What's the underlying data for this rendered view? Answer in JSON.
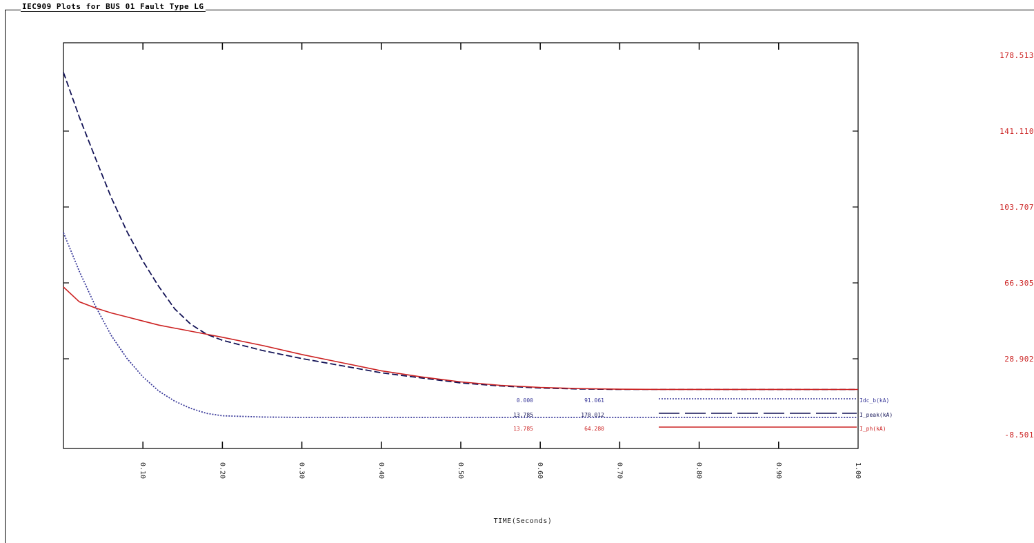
{
  "title": "IEC909 Plots for BUS 01 Fault Type LG",
  "chart_data": {
    "type": "line",
    "xlabel": "TIME(Seconds)",
    "xlim": [
      0.0,
      1.0
    ],
    "ylim": [
      -8.501,
      178.513
    ],
    "xticks": [
      "0.10",
      "0.20",
      "0.30",
      "0.40",
      "0.50",
      "0.60",
      "0.70",
      "0.80",
      "0.90",
      "1.00"
    ],
    "yticks": [
      "178.513",
      "141.110",
      "103.707",
      "66.305",
      "28.902",
      "-8.501"
    ],
    "grid": false,
    "legend_position": "lower-right",
    "series": [
      {
        "name": "Idc_b(kA)",
        "style": "dotted",
        "color": "#3a3a9a",
        "points": [
          [
            0.0,
            91.061
          ],
          [
            0.02,
            72.0
          ],
          [
            0.04,
            55.0
          ],
          [
            0.06,
            40.5
          ],
          [
            0.08,
            29.0
          ],
          [
            0.1,
            20.0
          ],
          [
            0.12,
            13.0
          ],
          [
            0.14,
            8.0
          ],
          [
            0.16,
            4.5
          ],
          [
            0.18,
            2.0
          ],
          [
            0.2,
            0.8
          ],
          [
            0.25,
            0.2
          ],
          [
            0.3,
            0.0
          ],
          [
            1.0,
            0.0
          ]
        ]
      },
      {
        "name": "I_peak(kA)",
        "style": "dashed",
        "color": "#111155",
        "points": [
          [
            0.0,
            170.012
          ],
          [
            0.02,
            148.0
          ],
          [
            0.04,
            128.0
          ],
          [
            0.06,
            108.5
          ],
          [
            0.08,
            91.5
          ],
          [
            0.1,
            77.0
          ],
          [
            0.12,
            64.5
          ],
          [
            0.14,
            53.5
          ],
          [
            0.16,
            46.0
          ],
          [
            0.18,
            41.0
          ],
          [
            0.2,
            38.0
          ],
          [
            0.25,
            33.0
          ],
          [
            0.3,
            29.0
          ],
          [
            0.35,
            25.5
          ],
          [
            0.4,
            22.0
          ],
          [
            0.45,
            19.5
          ],
          [
            0.5,
            17.0
          ],
          [
            0.55,
            15.5
          ],
          [
            0.6,
            14.5
          ],
          [
            0.65,
            14.0
          ],
          [
            0.7,
            13.8
          ],
          [
            0.75,
            13.8
          ],
          [
            0.8,
            13.8
          ],
          [
            1.0,
            13.785
          ]
        ]
      },
      {
        "name": "I_ph(kA)",
        "style": "solid",
        "color": "#cc2222",
        "points": [
          [
            0.0,
            64.28
          ],
          [
            0.02,
            57.0
          ],
          [
            0.04,
            54.0
          ],
          [
            0.06,
            51.5
          ],
          [
            0.08,
            49.5
          ],
          [
            0.1,
            47.5
          ],
          [
            0.12,
            45.5
          ],
          [
            0.14,
            44.0
          ],
          [
            0.16,
            42.5
          ],
          [
            0.18,
            41.0
          ],
          [
            0.2,
            39.5
          ],
          [
            0.25,
            35.5
          ],
          [
            0.3,
            31.0
          ],
          [
            0.35,
            27.0
          ],
          [
            0.4,
            23.0
          ],
          [
            0.45,
            20.0
          ],
          [
            0.5,
            17.5
          ],
          [
            0.55,
            15.8
          ],
          [
            0.6,
            14.8
          ],
          [
            0.65,
            14.2
          ],
          [
            0.7,
            13.9
          ],
          [
            0.75,
            13.8
          ],
          [
            1.0,
            13.785
          ]
        ]
      }
    ],
    "annotations": [
      {
        "series": "Idc_b(kA)",
        "values": [
          "0.000",
          "91.061"
        ]
      },
      {
        "series": "I_peak(kA)",
        "values": [
          "13.785",
          "170.012"
        ]
      },
      {
        "series": "I_ph(kA)",
        "values": [
          "13.785",
          "64.280"
        ]
      }
    ]
  }
}
